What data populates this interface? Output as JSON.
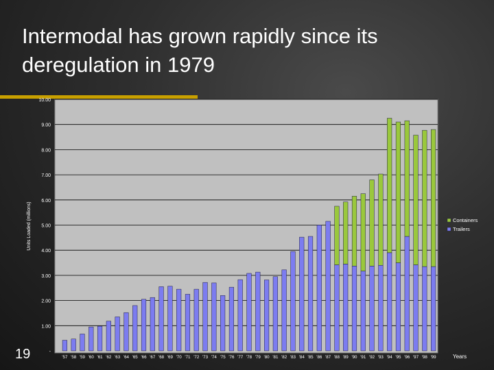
{
  "slide": {
    "title": "Intermodal has grown rapidly since its deregulation in 1979",
    "number": "19"
  },
  "chart_data": {
    "type": "bar",
    "stacked": true,
    "ylabel": "Units Loaded (millions)",
    "xlabel": "Years",
    "ylim": [
      0,
      10
    ],
    "y_ticks": [
      {
        "value": 0,
        "label": "-"
      },
      {
        "value": 1,
        "label": "1.00"
      },
      {
        "value": 2,
        "label": "2.00"
      },
      {
        "value": 3,
        "label": "3.00"
      },
      {
        "value": 4,
        "label": "4.00"
      },
      {
        "value": 5,
        "label": "5.00"
      },
      {
        "value": 6,
        "label": "6.00"
      },
      {
        "value": 7,
        "label": "7.00"
      },
      {
        "value": 8,
        "label": "8.00"
      },
      {
        "value": 9,
        "label": "9.00"
      },
      {
        "value": 10,
        "label": "10.00"
      }
    ],
    "grid": true,
    "legend_position": "right",
    "categories": [
      "'57",
      "'58",
      "'59",
      "'60",
      "'61",
      "'62",
      "'63",
      "'64",
      "'65",
      "'66",
      "'67",
      "'68",
      "'69",
      "'70",
      "'71",
      "'72",
      "'73",
      "'74",
      "'75",
      "'76",
      "'77",
      "'78",
      "'79",
      "'80",
      "'81",
      "'82",
      "'83",
      "'84",
      "'85",
      "'86",
      "'87",
      "'88",
      "'89",
      "'90",
      "'91",
      "'92",
      "'93",
      "'94",
      "'95",
      "'96",
      "'97",
      "'98",
      "'99"
    ],
    "series": [
      {
        "name": "Trailers",
        "color": "#7c7cf0",
        "values": [
          0.42,
          0.47,
          0.67,
          0.95,
          0.98,
          1.18,
          1.35,
          1.52,
          1.8,
          2.05,
          2.12,
          2.55,
          2.57,
          2.45,
          2.25,
          2.45,
          2.72,
          2.7,
          2.2,
          2.53,
          2.83,
          3.08,
          3.13,
          2.82,
          2.95,
          3.22,
          3.95,
          4.52,
          4.55,
          5.0,
          5.15,
          3.42,
          3.45,
          3.37,
          3.17,
          3.37,
          3.4,
          3.9,
          3.5,
          4.55,
          3.42,
          3.35,
          3.35
        ]
      },
      {
        "name": "Containers",
        "color": "#9ac83c",
        "values": [
          0,
          0,
          0,
          0,
          0,
          0,
          0,
          0,
          0,
          0,
          0,
          0,
          0,
          0,
          0,
          0,
          0,
          0,
          0,
          0,
          0,
          0,
          0,
          0,
          0,
          0,
          0,
          0,
          0,
          0,
          0,
          2.33,
          2.47,
          2.78,
          3.08,
          3.43,
          3.63,
          5.35,
          5.6,
          4.6,
          5.16,
          5.42,
          5.45
        ]
      }
    ]
  }
}
